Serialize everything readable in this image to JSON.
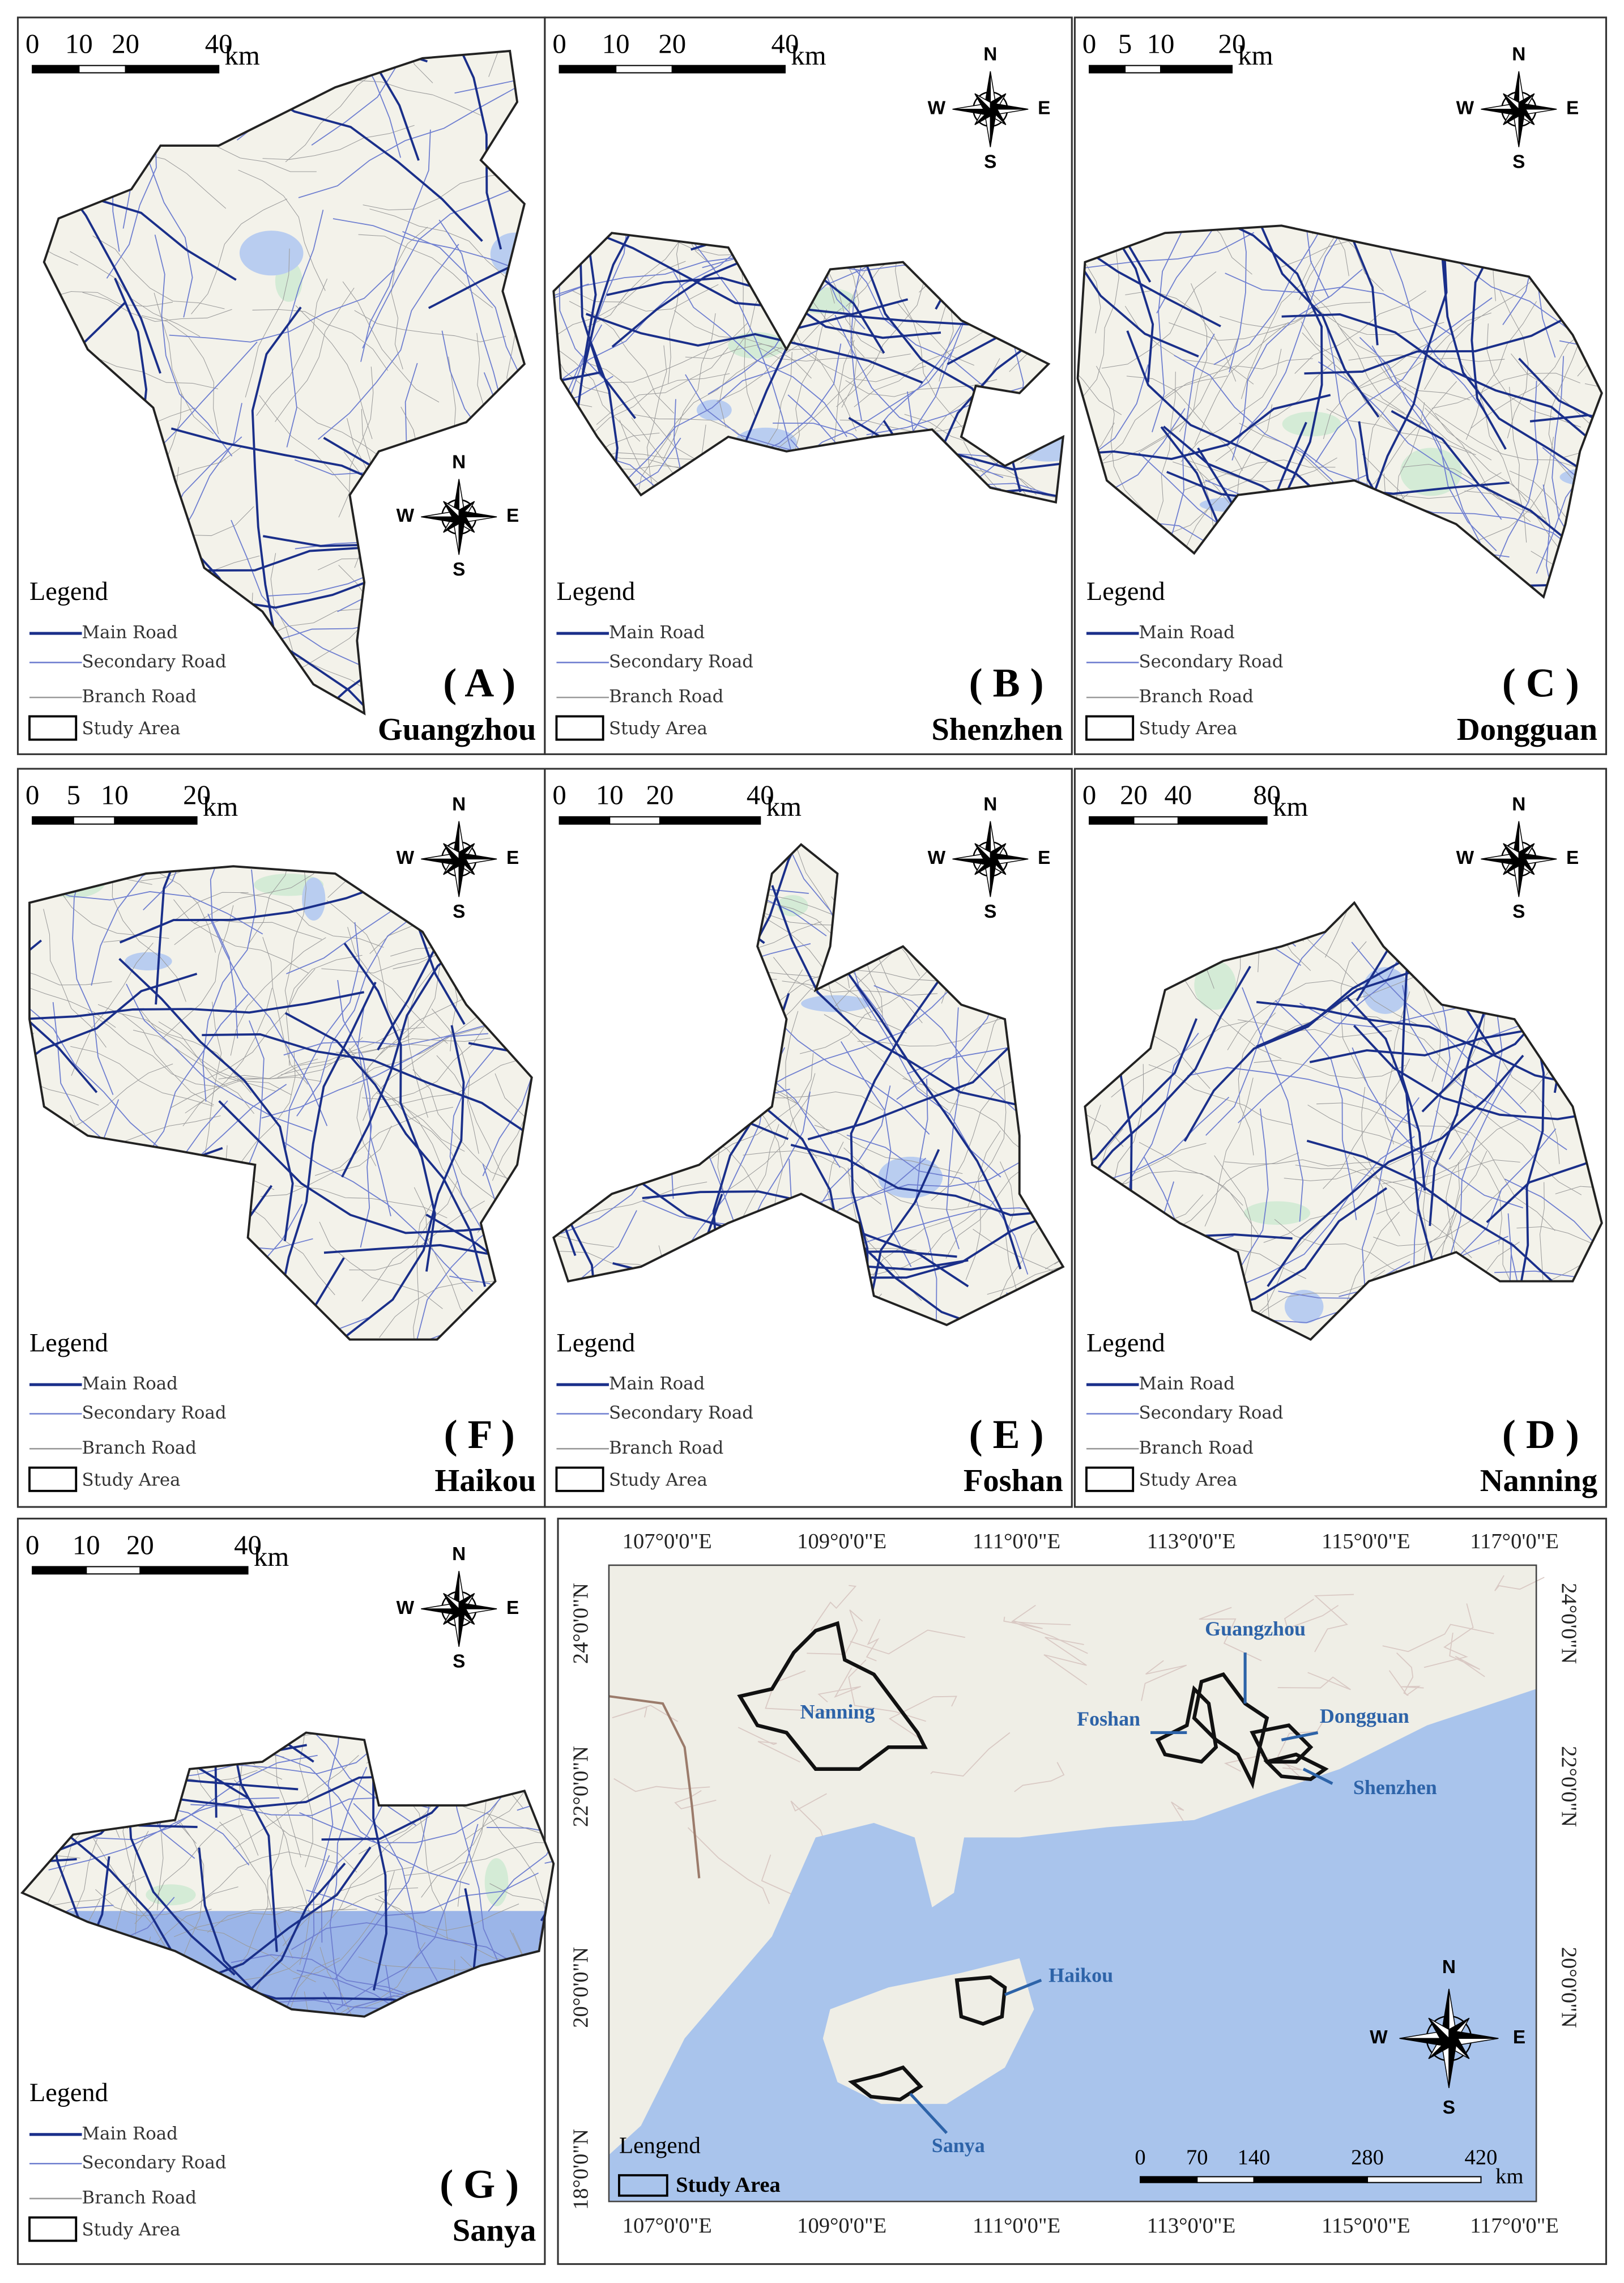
{
  "panels": [
    {
      "label": "( A )",
      "city": "Guangzhou",
      "scale": [
        0,
        10,
        20,
        40
      ]
    },
    {
      "label": "( B )",
      "city": "Shenzhen",
      "scale": [
        0,
        10,
        20,
        40
      ]
    },
    {
      "label": "( C )",
      "city": "Dongguan",
      "scale": [
        0,
        5,
        10,
        20
      ]
    },
    {
      "label": "( F )",
      "city": "Haikou",
      "scale": [
        0,
        5,
        10,
        20
      ]
    },
    {
      "label": "( E )",
      "city": "Foshan",
      "scale": [
        0,
        10,
        20,
        40
      ]
    },
    {
      "label": "( D )",
      "city": "Nanning",
      "scale": [
        0,
        20,
        40,
        80
      ]
    },
    {
      "label": "( G )",
      "city": "Sanya",
      "scale": [
        0,
        10,
        20,
        40
      ]
    }
  ],
  "scale_unit": "km",
  "legend": {
    "title": "Legend",
    "items": [
      "Main Road",
      "Secondary Road",
      "Branch Road",
      "Study Area"
    ]
  },
  "compass": {
    "n": "N",
    "s": "S",
    "w": "W",
    "e": "E"
  },
  "overview": {
    "longitudes": [
      "107°0'0\"E",
      "109°0'0\"E",
      "111°0'0\"E",
      "113°0'0\"E",
      "115°0'0\"E",
      "117°0'0\"E"
    ],
    "latitudes": [
      "24°0'0\"N",
      "22°0'0\"N",
      "20°0'0\"N",
      "18°0'0\"N"
    ],
    "cities": [
      "Guangzhou",
      "Foshan",
      "Dongguan",
      "Shenzhen",
      "Haikou",
      "Sanya",
      "Nanning"
    ],
    "legend_title": "Lengend",
    "legend_item": "Study Area",
    "scale": [
      0,
      70,
      140,
      280,
      420
    ]
  }
}
